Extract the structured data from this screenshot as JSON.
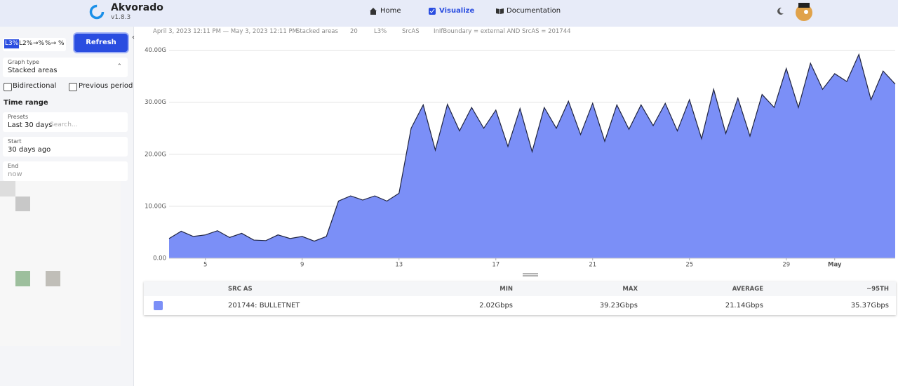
{
  "header": {
    "app_name": "Akvorado",
    "version": "v1.8.3",
    "nav": [
      "Home",
      "Visualize",
      "Documentation"
    ]
  },
  "sidebar": {
    "units": [
      "L3%",
      "L2%",
      "→%",
      "%→",
      "%"
    ],
    "refresh": "Refresh",
    "graph_type_label": "Graph type",
    "graph_type": "Stacked areas",
    "bidirectional": "Bidirectional",
    "previous_period": "Previous period",
    "time_range": "Time range",
    "presets_label": "Presets",
    "preset": "Last 30 days",
    "search_placeholder": "Search...",
    "start_label": "Start",
    "start": "30 days ago",
    "end_label": "End",
    "end": "now"
  },
  "summary": {
    "range": "April 3, 2023 12:11 PM — May 3, 2023 12:11 PM",
    "graph_type": "Stacked areas",
    "limit": "20",
    "unit": "L3%",
    "dimension": "SrcAS",
    "filter": "InIfBoundary = external AND SrcAS = 201744"
  },
  "chart_data": {
    "type": "area",
    "color": "#7b8ff7",
    "line_color": "#1f2440",
    "x": [
      3.5,
      4,
      4.5,
      5,
      5.5,
      6,
      6.5,
      7,
      7.5,
      8,
      8.5,
      9,
      9.5,
      10,
      10.5,
      11,
      11.5,
      12,
      12.5,
      13,
      13.5,
      14,
      14.5,
      15,
      15.5,
      16,
      16.5,
      17,
      17.5,
      18,
      18.5,
      19,
      19.5,
      20,
      20.5,
      21,
      21.5,
      22,
      22.5,
      23,
      23.5,
      24,
      24.5,
      25,
      25.5,
      26,
      26.5,
      27,
      27.5,
      28,
      28.5,
      29,
      29.5,
      30,
      30.5,
      31,
      31.5,
      32,
      32.5,
      33,
      33.5
    ],
    "values": [
      3.8,
      5.2,
      4.2,
      4.5,
      5.3,
      4.0,
      4.8,
      3.5,
      3.4,
      4.5,
      3.8,
      4.2,
      3.3,
      4.2,
      11.0,
      12.0,
      11.2,
      12.0,
      11.0,
      12.5,
      25.0,
      29.5,
      20.8,
      29.6,
      24.5,
      29.0,
      25.0,
      28.5,
      21.5,
      28.8,
      20.5,
      29.0,
      25.0,
      30.2,
      23.8,
      29.8,
      22.5,
      29.5,
      24.8,
      29.5,
      25.5,
      29.8,
      24.5,
      30.5,
      23.0,
      32.5,
      24.0,
      30.8,
      23.5,
      31.5,
      29.0,
      36.5,
      29.0,
      37.5,
      32.5,
      35.5,
      34.0,
      39.2,
      30.5,
      36.0,
      33.5
    ],
    "xlim": [
      3.5,
      33.5
    ],
    "xticks": [
      5,
      9,
      13,
      17,
      21,
      25,
      29,
      {
        "value": 31,
        "label": "May"
      }
    ],
    "ylim": [
      0,
      41.3
    ],
    "yticks": [
      {
        "value": 0,
        "label": "0.00"
      },
      {
        "value": 10,
        "label": "10.00G"
      },
      {
        "value": 20,
        "label": "20.00G"
      },
      {
        "value": 30,
        "label": "30.00G"
      },
      {
        "value": 40,
        "label": "40.00G"
      }
    ],
    "grid": true
  },
  "table": {
    "headers": [
      "SRC AS",
      "MIN",
      "MAX",
      "AVERAGE",
      "~95TH"
    ],
    "rows": [
      [
        "201744: BULLETNET",
        "2.02Gbps",
        "39.23Gbps",
        "21.14Gbps",
        "35.37Gbps"
      ]
    ]
  }
}
